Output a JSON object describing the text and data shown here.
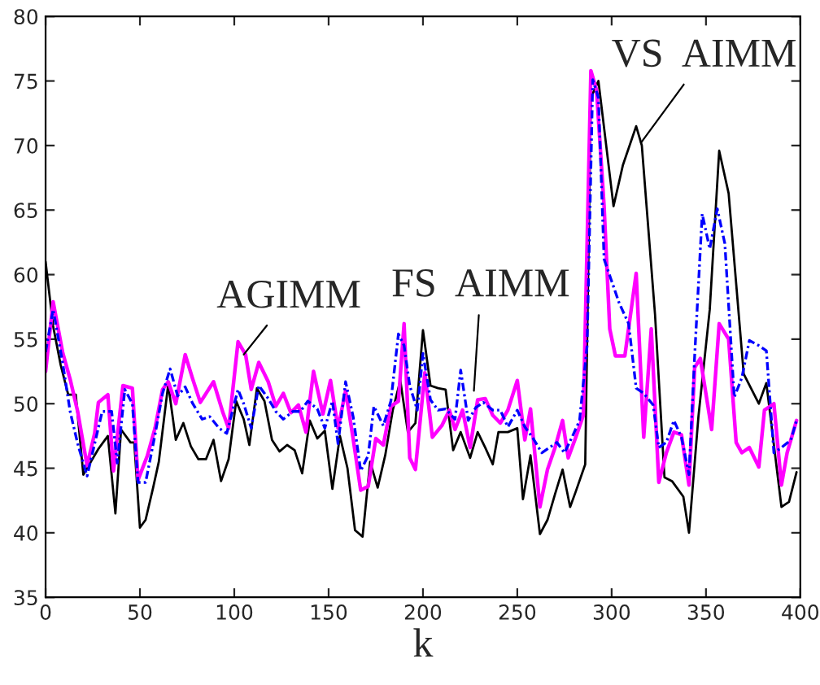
{
  "chart_data": {
    "type": "line",
    "xlabel": "k",
    "xlim": [
      0,
      400
    ],
    "xticks": [
      0,
      50,
      100,
      150,
      200,
      250,
      300,
      350,
      400
    ],
    "ylim": [
      35,
      80
    ],
    "yticks": [
      35,
      40,
      45,
      50,
      55,
      60,
      65,
      70,
      75,
      80
    ],
    "grid": false,
    "legend": false,
    "marker": "none",
    "series": [
      {
        "color": "#000000",
        "line_style": "solid",
        "x": [
          0,
          4,
          8,
          12,
          16,
          20,
          24,
          28,
          33,
          37,
          40,
          45,
          47,
          50,
          53,
          57,
          60,
          65,
          69,
          73,
          77,
          81,
          85,
          89,
          93,
          97,
          101,
          105,
          108,
          112,
          116,
          120,
          124,
          128,
          132,
          136,
          140,
          144,
          148,
          152,
          156,
          160,
          164,
          168,
          172,
          176,
          180,
          184,
          188,
          192,
          196,
          200,
          204,
          208,
          212,
          216,
          220,
          225,
          229,
          233,
          237,
          240,
          245,
          250,
          253,
          257,
          262,
          266,
          270,
          274,
          278,
          281,
          286,
          289,
          293,
          301,
          306,
          313,
          316,
          323,
          328,
          332,
          338,
          341,
          346,
          352,
          357,
          362,
          370,
          378,
          382,
          390,
          394,
          398
        ],
        "values": [
          61,
          56,
          53,
          50.7,
          50.7,
          44.5,
          45.5,
          46.5,
          47.5,
          41.5,
          48,
          47,
          47,
          40.4,
          41,
          43.5,
          45.5,
          51.5,
          47.2,
          48.5,
          46.7,
          45.7,
          45.7,
          47.2,
          44,
          45.7,
          50.2,
          48.8,
          46.8,
          51.2,
          50.2,
          47.2,
          46.3,
          46.8,
          46.4,
          44.6,
          48.7,
          47.3,
          47.9,
          43.4,
          47.5,
          45,
          40.2,
          39.7,
          45.5,
          43.5,
          46,
          49.5,
          51.8,
          47.8,
          48.5,
          55.7,
          51.4,
          51.2,
          51.1,
          46.4,
          47.8,
          45.8,
          47.8,
          46.6,
          45.3,
          47.8,
          47.8,
          48.1,
          42.6,
          46,
          39.9,
          41,
          43,
          44.9,
          42,
          43.2,
          45.3,
          73.7,
          75,
          65.3,
          68.5,
          71.5,
          70,
          56.9,
          44.3,
          44,
          42.8,
          40,
          49,
          57.3,
          69.6,
          66.3,
          52.3,
          50,
          51.6,
          42,
          42.4,
          44.7
        ]
      },
      {
        "color": "#0000ff",
        "line_style": "dashdot",
        "x": [
          0,
          4,
          9,
          13,
          17,
          22,
          26,
          30,
          35,
          38,
          42,
          46,
          49,
          53,
          58,
          62,
          66,
          70,
          74,
          78,
          83,
          87,
          92,
          96,
          102,
          105,
          109,
          113,
          118,
          122,
          126,
          131,
          135,
          139,
          144,
          148,
          152,
          155,
          159,
          163,
          167,
          171,
          174,
          179,
          183,
          187,
          190,
          193,
          197,
          200,
          204,
          208,
          212,
          217,
          220,
          224,
          228,
          232,
          237,
          241,
          245,
          250,
          254,
          258,
          263,
          267,
          271,
          275,
          279,
          283,
          287,
          290,
          293,
          296,
          300,
          304,
          309,
          313,
          317,
          322,
          325,
          329,
          333,
          337,
          341,
          344,
          348,
          352,
          356,
          360,
          365,
          369,
          373,
          378,
          382,
          386,
          390,
          395,
          398
        ],
        "values": [
          54,
          57.3,
          53.2,
          49.4,
          46.9,
          44.4,
          46.9,
          49.4,
          49.4,
          45.4,
          51.1,
          50,
          43.9,
          43.9,
          47.6,
          50.8,
          52.7,
          50.6,
          51.3,
          50,
          48.8,
          49,
          48.1,
          47.7,
          51.1,
          50,
          48.1,
          51.4,
          50.4,
          49.4,
          48.8,
          49.4,
          49.4,
          50.2,
          49.6,
          48.1,
          50.2,
          46.9,
          51.7,
          49,
          44.8,
          46,
          49.8,
          48.3,
          50.2,
          55.4,
          54.5,
          51.4,
          49.5,
          53.9,
          50.3,
          49.5,
          49.6,
          48.8,
          52.6,
          48.7,
          49.7,
          50.1,
          49.5,
          49.5,
          48.2,
          49.5,
          48.2,
          47.4,
          46.2,
          46.6,
          47,
          46.2,
          47.4,
          48.7,
          54.5,
          75.1,
          73.7,
          61.2,
          59.5,
          57.8,
          56.2,
          51.2,
          50.8,
          49.9,
          46.6,
          47,
          48.7,
          47.4,
          44.5,
          53.7,
          64.7,
          62,
          65.1,
          62.4,
          50.5,
          52,
          54.9,
          54.5,
          54.1,
          46.2,
          46.6,
          47.2,
          48.7
        ]
      },
      {
        "color": "#ff00ff",
        "line_style": "solid",
        "x": [
          0,
          4,
          9,
          13,
          17,
          22,
          26,
          28,
          33,
          36,
          41,
          46,
          49,
          54,
          58,
          62,
          65,
          69,
          74,
          78,
          82,
          89,
          94,
          97,
          102,
          106,
          109,
          113,
          118,
          122,
          126,
          130,
          134,
          138,
          142,
          147,
          151,
          155,
          159,
          163,
          167,
          171,
          175,
          179,
          183,
          187,
          190,
          193,
          196,
          201,
          205,
          210,
          214,
          217,
          221,
          225,
          229,
          233,
          237,
          241,
          245,
          250,
          254,
          257,
          262,
          266,
          270,
          274,
          277,
          281,
          285,
          289,
          292,
          296,
          299,
          302,
          307,
          313,
          317,
          321,
          325,
          329,
          333,
          337,
          341,
          344,
          347,
          353,
          357,
          362,
          366,
          369,
          373,
          378,
          381,
          386,
          390,
          393,
          398
        ],
        "values": [
          52.5,
          57.9,
          54,
          51.9,
          49.4,
          45.2,
          47.7,
          50.1,
          50.7,
          44.8,
          51.4,
          51.2,
          44.1,
          46,
          48.1,
          51.1,
          51.7,
          50,
          53.8,
          51.9,
          50.1,
          51.7,
          49.3,
          48.1,
          54.8,
          53.8,
          51.1,
          53.2,
          51.7,
          49.8,
          50.8,
          49.3,
          49.9,
          47.8,
          52.5,
          49.2,
          51.8,
          48.1,
          51,
          47.3,
          43.3,
          43.6,
          47.3,
          46.8,
          49.8,
          50.2,
          56.2,
          45.8,
          44.9,
          52.4,
          47.4,
          48.3,
          49.5,
          48,
          49.5,
          46.6,
          50.3,
          50.4,
          49.1,
          48.5,
          49.5,
          51.8,
          47.2,
          49.6,
          42,
          44.9,
          46.6,
          48.7,
          45.8,
          47.4,
          49.1,
          75.8,
          74.3,
          65.3,
          55.8,
          53.7,
          53.7,
          60.1,
          47.4,
          55.8,
          43.9,
          46.2,
          47.8,
          47.6,
          43.7,
          52.8,
          53.5,
          48,
          56.2,
          55,
          47,
          46.2,
          46.6,
          45.1,
          49.5,
          50,
          43.7,
          46.2,
          48.7
        ]
      }
    ],
    "annotations": [
      {
        "text": "AGIMM",
        "x": 105,
        "y": 53.8
      },
      {
        "text": "FS  AIMM",
        "x": 227,
        "y": 51
      },
      {
        "text": "VS  AIMM",
        "x": 315.5,
        "y": 70.2
      }
    ]
  }
}
